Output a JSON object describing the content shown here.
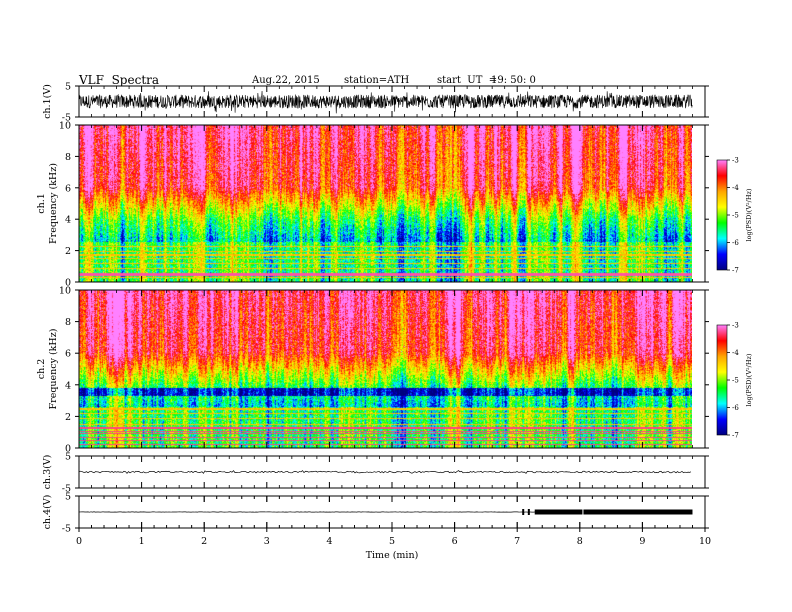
{
  "header": {
    "title": "VLF  Spectra",
    "date": "Aug.22, 2015",
    "station": "station=ATH",
    "start_ut_label": "start  UT  =",
    "start_ut_value": "19: 50: 0"
  },
  "chart_data": [
    {
      "type": "line",
      "panel": "ch1-waveform",
      "ylabel": "ch.1(V)",
      "ylim": [
        -5,
        5
      ],
      "yticks": [
        "5",
        "-5"
      ],
      "xlim": [
        0,
        10
      ],
      "trace": "dense noisy waveform, amplitude roughly ±2.5 V about 0, data from 0 to ~9.8 min",
      "color": "#000000"
    },
    {
      "type": "heatmap",
      "panel": "ch1-spectrogram",
      "ylabel_top": "ch.1",
      "ylabel": "Frequency  (kHz)",
      "ylim": [
        0,
        10
      ],
      "yticks": [
        "0",
        "2",
        "4",
        "6",
        "8",
        "10"
      ],
      "xlim": [
        0,
        10
      ],
      "colorbar": {
        "label": "log(PSD)(V²/Hz)",
        "range": [
          -7,
          -3
        ],
        "ticks": [
          "-3",
          "-4",
          "-5",
          "-6",
          "-7"
        ]
      },
      "description": "red/orange high PSD above ~6 kHz, green 4-6 kHz, cyan/blue banded 2-4 kHz, horizontal lines below 2 kHz, red band near 0.5 kHz"
    },
    {
      "type": "heatmap",
      "panel": "ch2-spectrogram",
      "ylabel_top": "ch.2",
      "ylabel": "Frequency  (kHz)",
      "ylim": [
        0,
        10
      ],
      "yticks": [
        "0",
        "2",
        "4",
        "6",
        "8",
        "10"
      ],
      "xlim": [
        0,
        10
      ],
      "colorbar": {
        "label": "log(PSD)(V²/Hz)",
        "range": [
          -7,
          -3
        ],
        "ticks": [
          "-3",
          "-4",
          "-5",
          "-6",
          "-7"
        ]
      },
      "description": "red/orange high PSD above ~6 kHz, green 4-6 kHz, blue band near 3.5 kHz, red horizontal lines below 1.5 kHz"
    },
    {
      "type": "line",
      "panel": "ch3-waveform",
      "ylabel": "ch.3(V)",
      "ylim": [
        -5,
        5
      ],
      "yticks": [
        "5",
        "-5"
      ],
      "xlim": [
        0,
        10
      ],
      "trace": "near-flat line at about 0 V",
      "color": "#000000"
    },
    {
      "type": "line",
      "panel": "ch4-waveform",
      "ylabel": "ch.4(V)",
      "ylim": [
        -5,
        5
      ],
      "yticks": [
        "5",
        "-5"
      ],
      "xlim": [
        0,
        10
      ],
      "trace": "flat line at about 0 V; pulses/thickened segment from ~7.0 to ~9.8 min",
      "color": "#000000"
    }
  ],
  "xaxis": {
    "label": "Time  (min)",
    "ticks": [
      "0",
      "1",
      "2",
      "3",
      "4",
      "5",
      "6",
      "7",
      "8",
      "9",
      "10"
    ],
    "range": [
      0,
      10
    ],
    "data_end_min": 9.8
  },
  "colors": {
    "colormap": [
      "#000080",
      "#0000ff",
      "#00ffff",
      "#00ff00",
      "#ffff00",
      "#ffa500",
      "#ff0000",
      "#ff80ff"
    ]
  }
}
